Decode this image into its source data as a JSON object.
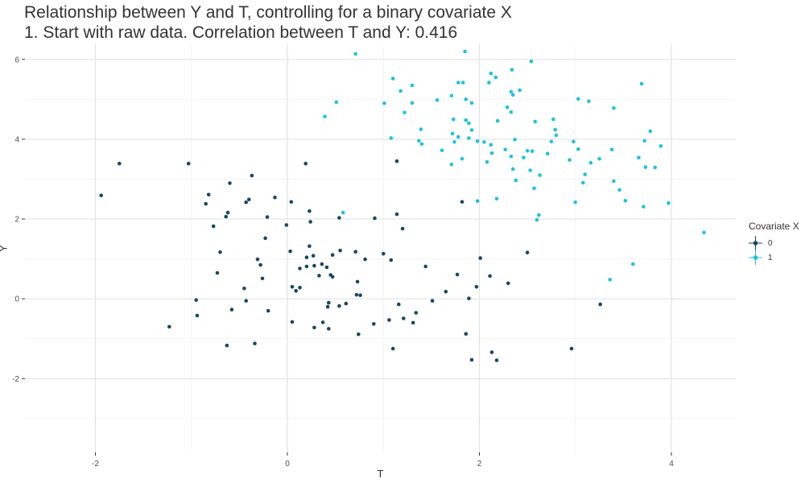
{
  "chart_data": {
    "type": "scatter",
    "title": "Relationship between Y and T, controlling for a binary covariate X",
    "subtitle": "1. Start with raw data. Correlation between T and Y: 0.416",
    "xlabel": "T",
    "ylabel": "Y",
    "x_domain": [
      -2.734,
      4.671
    ],
    "y_domain": [
      -3.85,
      6.38
    ],
    "x_ticks": [
      -2,
      0,
      2,
      4
    ],
    "x_minor": [
      -1,
      1,
      3
    ],
    "y_ticks": [
      -2,
      0,
      2,
      4,
      6
    ],
    "y_minor": [
      -3,
      -1,
      1,
      3,
      5
    ],
    "grid": true,
    "legend": {
      "title": "Covariate X",
      "position": "right",
      "entries": [
        {
          "label": "0",
          "color": "#17495F"
        },
        {
          "label": "1",
          "color": "#20C2DB"
        }
      ]
    },
    "theme": {
      "background": "#ffffff",
      "grid_major": "#e3e3e3",
      "grid_minor": "#f0f0f0",
      "tick": "#333333",
      "tick_label": "#4d4d4d",
      "point_radius": 2.3
    },
    "series": [
      {
        "name": "0",
        "color": "#17495F",
        "points": [
          [
            -1.75,
            3.39
          ],
          [
            -1.03,
            3.39
          ],
          [
            -1.94,
            2.59
          ],
          [
            -0.37,
            3.09
          ],
          [
            -0.6,
            2.9
          ],
          [
            -0.82,
            2.61
          ],
          [
            -0.85,
            2.38
          ],
          [
            -0.43,
            2.42
          ],
          [
            -0.4,
            2.49
          ],
          [
            -0.13,
            2.54
          ],
          [
            -0.62,
            2.16
          ],
          [
            -0.64,
            2.06
          ],
          [
            -0.21,
            2.05
          ],
          [
            -0.77,
            1.82
          ],
          [
            -0.23,
            1.52
          ],
          [
            0.19,
            3.39
          ],
          [
            1.14,
            3.45
          ],
          [
            0.04,
            2.43
          ],
          [
            0.23,
            2.2
          ],
          [
            0.24,
            1.93
          ],
          [
            0.54,
            2.03
          ],
          [
            0.91,
            2.02
          ],
          [
            1.14,
            2.12
          ],
          [
            -0.01,
            1.85
          ],
          [
            1.2,
            1.76
          ],
          [
            1.82,
            2.43
          ],
          [
            0.23,
            1.32
          ],
          [
            0.03,
            1.19
          ],
          [
            0.55,
            1.21
          ],
          [
            0.71,
            1.18
          ],
          [
            1.0,
            1.13
          ],
          [
            0.2,
            1.04
          ],
          [
            0.27,
            1.08
          ],
          [
            0.47,
            1.1
          ],
          [
            0.81,
            0.99
          ],
          [
            1.08,
            0.97
          ],
          [
            2.01,
            1.02
          ],
          [
            0.13,
            0.76
          ],
          [
            0.2,
            0.81
          ],
          [
            0.28,
            0.83
          ],
          [
            0.36,
            0.87
          ],
          [
            0.41,
            0.79
          ],
          [
            1.44,
            0.81
          ],
          [
            0.33,
            0.58
          ],
          [
            0.45,
            0.6
          ],
          [
            0.47,
            0.55
          ],
          [
            1.77,
            0.61
          ],
          [
            2.11,
            0.57
          ],
          [
            0.73,
            0.43
          ],
          [
            0.05,
            0.3
          ],
          [
            0.13,
            0.28
          ],
          [
            0.09,
            0.2
          ],
          [
            1.97,
            0.3
          ],
          [
            1.65,
            0.18
          ],
          [
            0.72,
            0.1
          ],
          [
            0.76,
            0.09
          ],
          [
            1.89,
            0.01
          ],
          [
            1.51,
            -0.05
          ],
          [
            0.43,
            -0.1
          ],
          [
            0.42,
            -0.2
          ],
          [
            0.61,
            -0.12
          ],
          [
            0.54,
            -0.18
          ],
          [
            1.16,
            -0.14
          ],
          [
            1.34,
            -0.35
          ],
          [
            0.05,
            -0.58
          ],
          [
            1.06,
            -0.53
          ],
          [
            1.21,
            -0.49
          ],
          [
            1.31,
            -0.6
          ],
          [
            0.9,
            -0.63
          ],
          [
            0.37,
            -0.59
          ],
          [
            0.28,
            -0.72
          ],
          [
            0.43,
            -0.75
          ],
          [
            1.86,
            -0.88
          ],
          [
            0.74,
            -0.89
          ],
          [
            1.1,
            -1.25
          ],
          [
            1.92,
            -1.53
          ],
          [
            2.13,
            -1.34
          ],
          [
            2.18,
            -1.54
          ],
          [
            -0.7,
            1.17
          ],
          [
            -0.31,
            0.99
          ],
          [
            -0.28,
            0.85
          ],
          [
            -0.73,
            0.65
          ],
          [
            -0.26,
            0.51
          ],
          [
            -0.45,
            0.26
          ],
          [
            -0.95,
            -0.03
          ],
          [
            -0.43,
            -0.05
          ],
          [
            -0.58,
            -0.27
          ],
          [
            -0.2,
            -0.3
          ],
          [
            -0.94,
            -0.42
          ],
          [
            -1.23,
            -0.7
          ],
          [
            -0.63,
            -1.17
          ],
          [
            -0.34,
            -1.12
          ],
          [
            2.5,
            1.16
          ],
          [
            2.3,
            0.39
          ],
          [
            3.26,
            -0.14
          ],
          [
            2.96,
            -1.25
          ]
        ]
      },
      {
        "name": "1",
        "color": "#20C2DB",
        "points": [
          [
            0.71,
            6.14
          ],
          [
            1.85,
            6.2
          ],
          [
            1.1,
            5.52
          ],
          [
            1.3,
            5.35
          ],
          [
            1.18,
            5.21
          ],
          [
            2.12,
            5.65
          ],
          [
            2.17,
            5.55
          ],
          [
            2.1,
            5.42
          ],
          [
            1.78,
            5.42
          ],
          [
            1.83,
            5.42
          ],
          [
            1.71,
            5.09
          ],
          [
            1.56,
            4.98
          ],
          [
            1.86,
            5.0
          ],
          [
            1.92,
            4.91
          ],
          [
            1.01,
            4.9
          ],
          [
            1.3,
            4.91
          ],
          [
            0.51,
            4.93
          ],
          [
            0.39,
            4.57
          ],
          [
            1.22,
            4.67
          ],
          [
            1.73,
            4.5
          ],
          [
            1.86,
            4.48
          ],
          [
            1.89,
            4.4
          ],
          [
            2.19,
            4.46
          ],
          [
            1.39,
            4.25
          ],
          [
            1.72,
            4.14
          ],
          [
            1.78,
            4.06
          ],
          [
            1.92,
            4.23
          ],
          [
            1.08,
            4.03
          ],
          [
            1.37,
            3.96
          ],
          [
            1.4,
            3.88
          ],
          [
            1.74,
            3.93
          ],
          [
            1.89,
            4.03
          ],
          [
            1.98,
            3.95
          ],
          [
            2.05,
            3.93
          ],
          [
            2.12,
            3.86
          ],
          [
            2.27,
            3.74
          ],
          [
            1.61,
            3.72
          ],
          [
            2.13,
            3.65
          ],
          [
            1.82,
            3.51
          ],
          [
            1.71,
            3.37
          ],
          [
            2.08,
            3.43
          ],
          [
            1.98,
            2.45
          ],
          [
            2.18,
            2.51
          ],
          [
            0.58,
            2.16
          ],
          [
            2.54,
            5.95
          ],
          [
            2.34,
            5.74
          ],
          [
            2.42,
            5.23
          ],
          [
            2.33,
            5.19
          ],
          [
            2.35,
            5.11
          ],
          [
            3.69,
            5.39
          ],
          [
            3.03,
            5.01
          ],
          [
            3.14,
            4.95
          ],
          [
            3.4,
            4.78
          ],
          [
            2.29,
            4.8
          ],
          [
            2.33,
            4.68
          ],
          [
            2.58,
            4.44
          ],
          [
            2.77,
            4.5
          ],
          [
            2.79,
            4.24
          ],
          [
            2.8,
            4.1
          ],
          [
            3.78,
            4.2
          ],
          [
            2.37,
            3.99
          ],
          [
            2.75,
            3.94
          ],
          [
            2.98,
            3.94
          ],
          [
            3.72,
            3.96
          ],
          [
            3.89,
            3.83
          ],
          [
            3.03,
            3.75
          ],
          [
            2.5,
            3.71
          ],
          [
            2.55,
            3.7
          ],
          [
            2.71,
            3.64
          ],
          [
            3.38,
            3.74
          ],
          [
            2.33,
            3.57
          ],
          [
            2.46,
            3.54
          ],
          [
            2.94,
            3.48
          ],
          [
            3.16,
            3.41
          ],
          [
            3.25,
            3.51
          ],
          [
            3.66,
            3.54
          ],
          [
            2.35,
            3.25
          ],
          [
            2.53,
            3.22
          ],
          [
            3.73,
            3.3
          ],
          [
            3.83,
            3.29
          ],
          [
            2.63,
            3.1
          ],
          [
            3.1,
            3.12
          ],
          [
            2.38,
            2.97
          ],
          [
            3.08,
            2.91
          ],
          [
            3.4,
            2.95
          ],
          [
            2.57,
            2.77
          ],
          [
            3.46,
            2.73
          ],
          [
            3.52,
            2.46
          ],
          [
            3.0,
            2.42
          ],
          [
            3.71,
            2.31
          ],
          [
            3.97,
            2.4
          ],
          [
            2.62,
            2.1
          ],
          [
            2.6,
            1.98
          ],
          [
            4.34,
            1.66
          ],
          [
            3.6,
            0.87
          ],
          [
            3.36,
            0.48
          ]
        ]
      }
    ]
  }
}
